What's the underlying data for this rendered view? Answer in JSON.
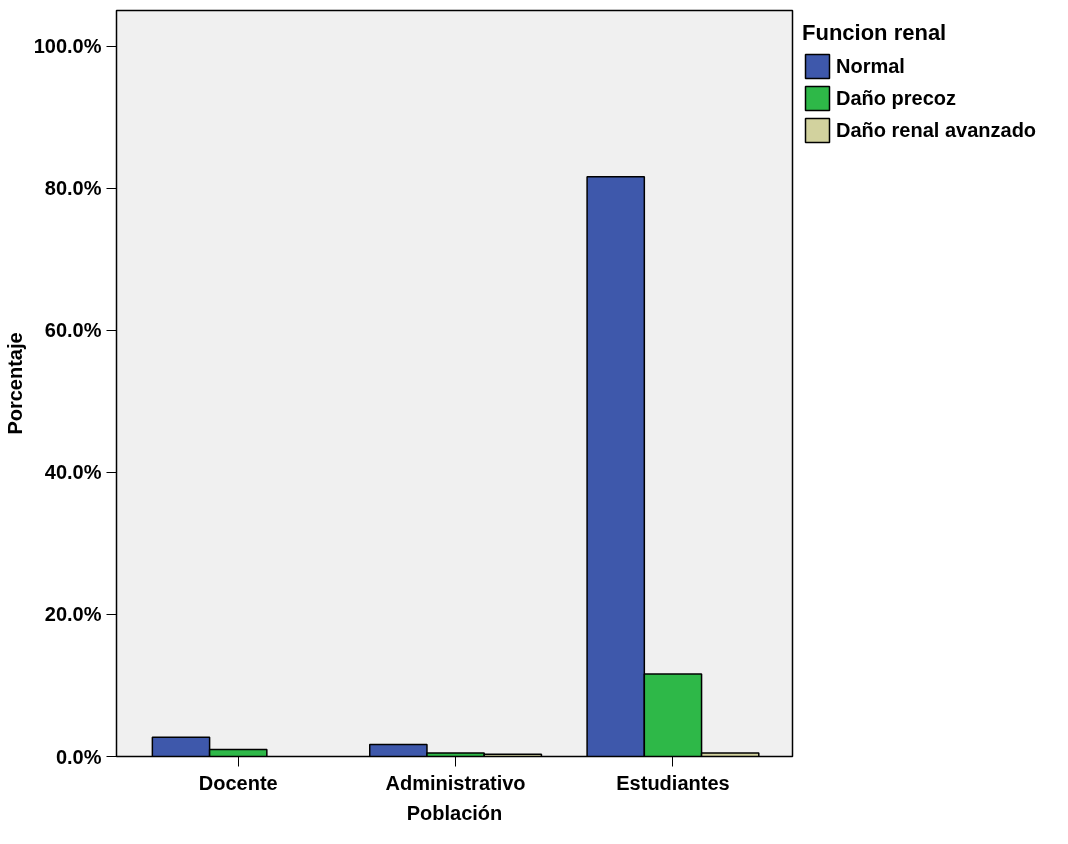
{
  "chart_data": {
    "type": "bar",
    "xlabel": "Población",
    "ylabel": "Porcentaje",
    "legend_title": "Funcion renal",
    "categories": [
      "Docente",
      "Administrativo",
      "Estudiantes"
    ],
    "series": [
      {
        "name": "Normal",
        "color": "#3e58ab",
        "values": [
          2.7,
          1.7,
          81.6
        ]
      },
      {
        "name": "Daño precoz",
        "color": "#2eb848",
        "values": [
          1.0,
          0.5,
          11.6
        ]
      },
      {
        "name": "Daño renal avanzado",
        "color": "#d2d29e",
        "values": [
          null,
          0.3,
          0.5
        ]
      }
    ],
    "ylim": [
      0,
      105
    ],
    "yticks": [
      {
        "value": 0,
        "label": "0.0%"
      },
      {
        "value": 20,
        "label": "20.0%"
      },
      {
        "value": 40,
        "label": "40.0%"
      },
      {
        "value": 60,
        "label": "60.0%"
      },
      {
        "value": 80,
        "label": "80.0%"
      },
      {
        "value": 100,
        "label": "100.0%"
      }
    ],
    "grid": false,
    "legend": "right"
  }
}
